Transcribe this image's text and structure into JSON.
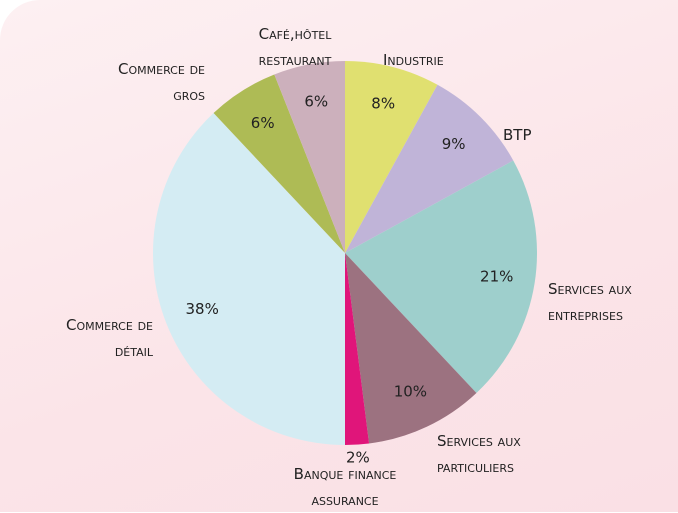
{
  "chart_data": {
    "type": "pie",
    "categories": [
      "Industrie",
      "BTP",
      "Services aux entreprises",
      "Services aux particuliers",
      "Banque finance assurance",
      "Commerce de détail",
      "Commerce de gros",
      "Café,hôtel restaurant"
    ],
    "values": [
      8,
      9,
      21,
      10,
      2,
      38,
      6,
      6
    ],
    "value_labels": [
      "8%",
      "9%",
      "21%",
      "10%",
      "2%",
      "38%",
      "6%",
      "6%"
    ],
    "colors": [
      "#e0e070",
      "#c0b4d8",
      "#9ecfcc",
      "#9c7280",
      "#e0157a",
      "#d4ecf3",
      "#aebb55",
      "#ccb0bc"
    ]
  }
}
